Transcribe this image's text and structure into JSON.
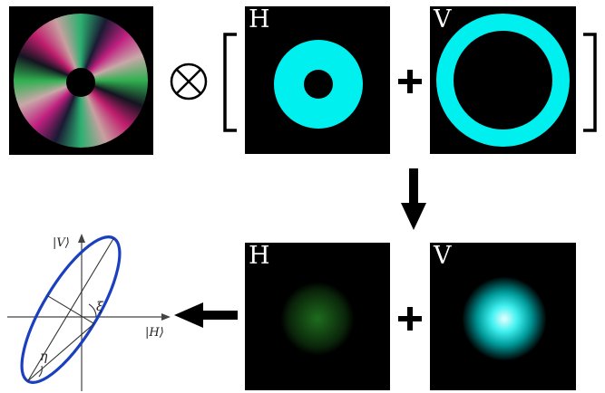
{
  "top_row": {
    "panel_h": {
      "letter": "H"
    },
    "panel_v": {
      "letter": "V"
    }
  },
  "bottom_row": {
    "panel_h": {
      "letter": "H"
    },
    "panel_v": {
      "letter": "V"
    }
  },
  "ellipse_plot": {
    "axis_v_label": "|V⟩",
    "axis_h_label": "|H⟩",
    "angle_xi": "ξ",
    "angle_eta": "η"
  },
  "colors": {
    "cyan": "#00f0f0",
    "ellipse_blue": "#1a3fbf",
    "green_spot": "#1f6b1f",
    "panel_bg": "#000000"
  },
  "icons": {
    "tensor_product": "circled-times-icon",
    "arrow_down": "arrow-down-icon",
    "arrow_left": "arrow-left-icon"
  }
}
